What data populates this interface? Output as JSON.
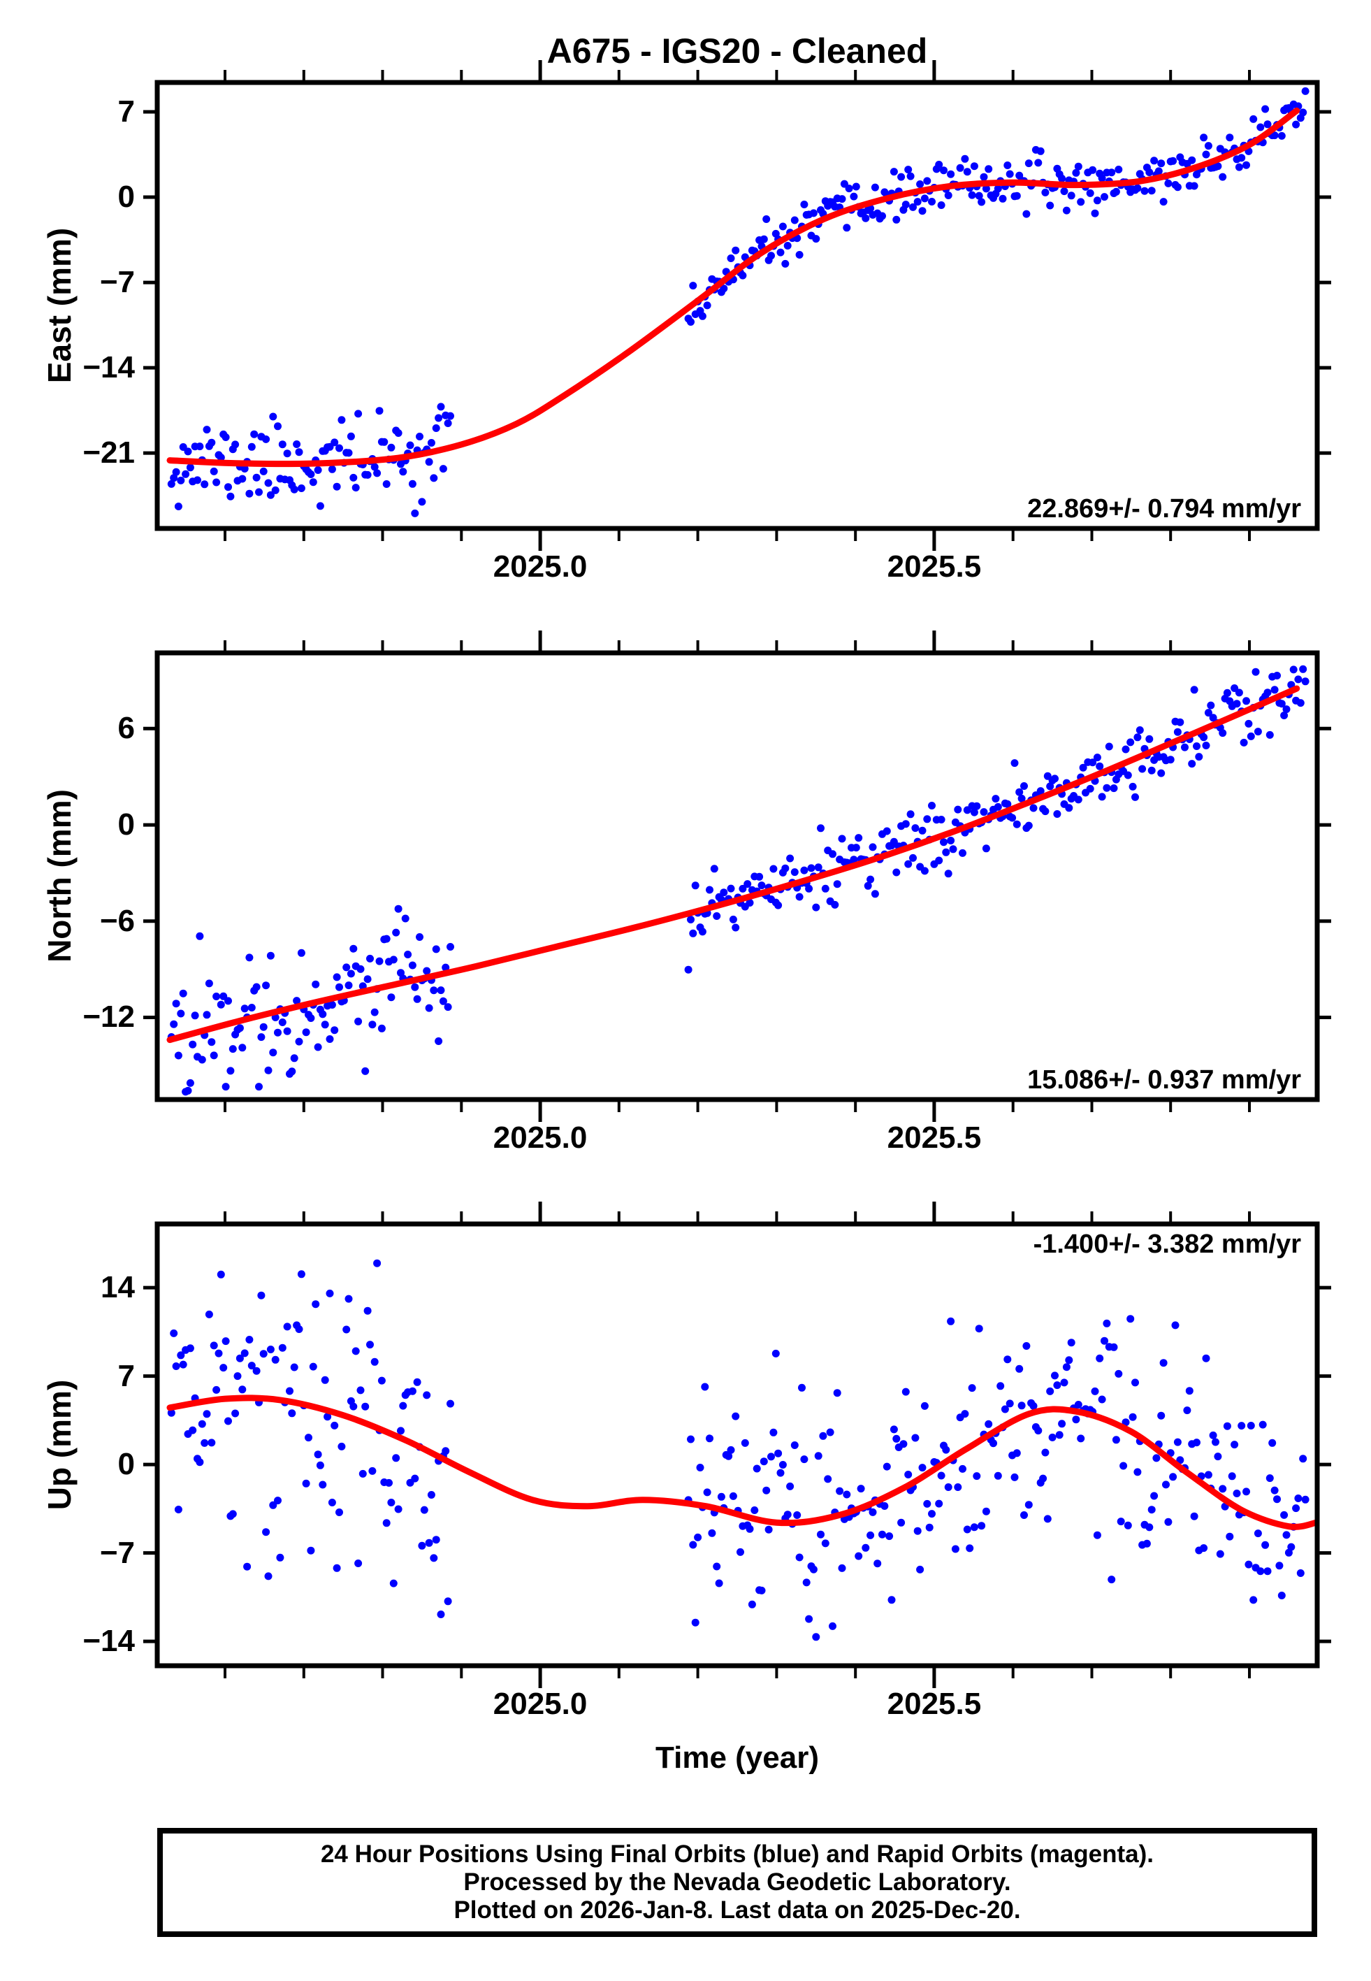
{
  "chart_data": {
    "type": "scatter",
    "title": "A675  - IGS20 - Cleaned",
    "colors": {
      "final_orbits": "#0000ff",
      "rapid_orbits": "#ff00ff",
      "trend_line": "#ff0000",
      "frame": "#000000",
      "background": "#ffffff"
    },
    "x_axis": {
      "label": "Time (year)",
      "range": [
        2024.514,
        2025.986
      ],
      "major_ticks": [
        2025.0,
        2025.5
      ],
      "major_tick_labels": [
        "2025.0",
        "2025.5"
      ],
      "minor_ticks": [
        2024.6,
        2024.7,
        2024.8,
        2024.9,
        2025.1,
        2025.2,
        2025.3,
        2025.4,
        2025.6,
        2025.7,
        2025.8,
        2025.9
      ]
    },
    "panels": [
      {
        "id": "east",
        "ylabel": "East (mm)",
        "annotation": "22.869+/- 0.794 mm/yr",
        "annotation_corner": "bottom-right",
        "yrange": [
          -27.19,
          9.41
        ],
        "yticks": [
          7,
          0,
          -7,
          -14,
          -21
        ],
        "ytick_labels": [
          "7",
          "0",
          "−7",
          "−14",
          "−21"
        ],
        "trend": [
          [
            2024.53,
            -21.6
          ],
          [
            2024.62,
            -21.85
          ],
          [
            2024.72,
            -21.85
          ],
          [
            2024.82,
            -21.4
          ],
          [
            2024.9,
            -20.3
          ],
          [
            2024.97,
            -18.6
          ],
          [
            2025.03,
            -16.3
          ],
          [
            2025.11,
            -12.8
          ],
          [
            2025.2,
            -8.5
          ],
          [
            2025.28,
            -4.6
          ],
          [
            2025.36,
            -1.8
          ],
          [
            2025.44,
            -0.1
          ],
          [
            2025.52,
            0.9
          ],
          [
            2025.6,
            1.2
          ],
          [
            2025.68,
            1.0
          ],
          [
            2025.76,
            1.3
          ],
          [
            2025.83,
            2.4
          ],
          [
            2025.9,
            4.3
          ],
          [
            2025.96,
            7.1
          ]
        ],
        "scatter": {
          "seed": 11,
          "point_radius": 5.5,
          "segments": [
            {
              "t0": 2024.532,
              "t1": 2024.886,
              "step": 0.003,
              "sigma": 1.7
            },
            {
              "t0": 2025.188,
              "t1": 2025.973,
              "step": 0.003,
              "sigma": 0.95
            }
          ]
        }
      },
      {
        "id": "north",
        "ylabel": "North (mm)",
        "annotation": "15.086+/- 0.937 mm/yr",
        "annotation_corner": "bottom-right",
        "yrange": [
          -17.12,
          10.72
        ],
        "yticks": [
          6,
          0,
          -6,
          -12
        ],
        "ytick_labels": [
          "6",
          "0",
          "−6",
          "−12"
        ],
        "trend": [
          [
            2024.53,
            -13.4
          ],
          [
            2024.62,
            -12.2
          ],
          [
            2024.72,
            -11.0
          ],
          [
            2024.82,
            -9.9
          ],
          [
            2024.92,
            -8.8
          ],
          [
            2025.02,
            -7.6
          ],
          [
            2025.12,
            -6.4
          ],
          [
            2025.22,
            -5.1
          ],
          [
            2025.32,
            -3.7
          ],
          [
            2025.42,
            -2.2
          ],
          [
            2025.52,
            -0.5
          ],
          [
            2025.62,
            1.4
          ],
          [
            2025.72,
            3.4
          ],
          [
            2025.82,
            5.5
          ],
          [
            2025.9,
            7.2
          ],
          [
            2025.96,
            8.5
          ]
        ],
        "scatter": {
          "seed": 22,
          "point_radius": 5.5,
          "segments": [
            {
              "t0": 2024.532,
              "t1": 2024.886,
              "step": 0.003,
              "sigma": 1.9
            },
            {
              "t0": 2025.188,
              "t1": 2025.973,
              "step": 0.003,
              "sigma": 1.05
            }
          ]
        }
      },
      {
        "id": "up",
        "ylabel": "Up (mm)",
        "annotation": "-1.400+/- 3.382 mm/yr",
        "annotation_corner": "top-right",
        "yrange": [
          -15.93,
          19.04
        ],
        "yticks": [
          14,
          7,
          0,
          -7,
          -14
        ],
        "ytick_labels": [
          "14",
          "7",
          "0",
          "−7",
          "−14"
        ],
        "trend": [
          [
            2024.53,
            4.5
          ],
          [
            2024.6,
            5.2
          ],
          [
            2024.67,
            5.1
          ],
          [
            2024.75,
            3.9
          ],
          [
            2024.83,
            1.9
          ],
          [
            2024.91,
            -0.6
          ],
          [
            2024.99,
            -2.8
          ],
          [
            2025.06,
            -3.3
          ],
          [
            2025.13,
            -2.8
          ],
          [
            2025.21,
            -3.3
          ],
          [
            2025.3,
            -4.6
          ],
          [
            2025.38,
            -4.0
          ],
          [
            2025.46,
            -1.9
          ],
          [
            2025.54,
            1.2
          ],
          [
            2025.62,
            4.0
          ],
          [
            2025.68,
            4.2
          ],
          [
            2025.75,
            2.6
          ],
          [
            2025.82,
            -0.6
          ],
          [
            2025.89,
            -3.6
          ],
          [
            2025.95,
            -4.9
          ],
          [
            2025.985,
            -4.6
          ]
        ],
        "scatter": {
          "seed": 33,
          "point_radius": 5.5,
          "segments": [
            {
              "t0": 2024.532,
              "t1": 2024.886,
              "step": 0.003,
              "sigma": 6.0
            },
            {
              "t0": 2025.188,
              "t1": 2025.973,
              "step": 0.003,
              "sigma": 4.8
            }
          ]
        }
      }
    ],
    "caption": {
      "lines": [
        "24 Hour Positions Using Final Orbits (blue) and Rapid Orbits (magenta).",
        "Processed by the Nevada Geodetic Laboratory.",
        "Plotted on 2026-Jan-8. Last data on 2025-Dec-20."
      ]
    }
  }
}
